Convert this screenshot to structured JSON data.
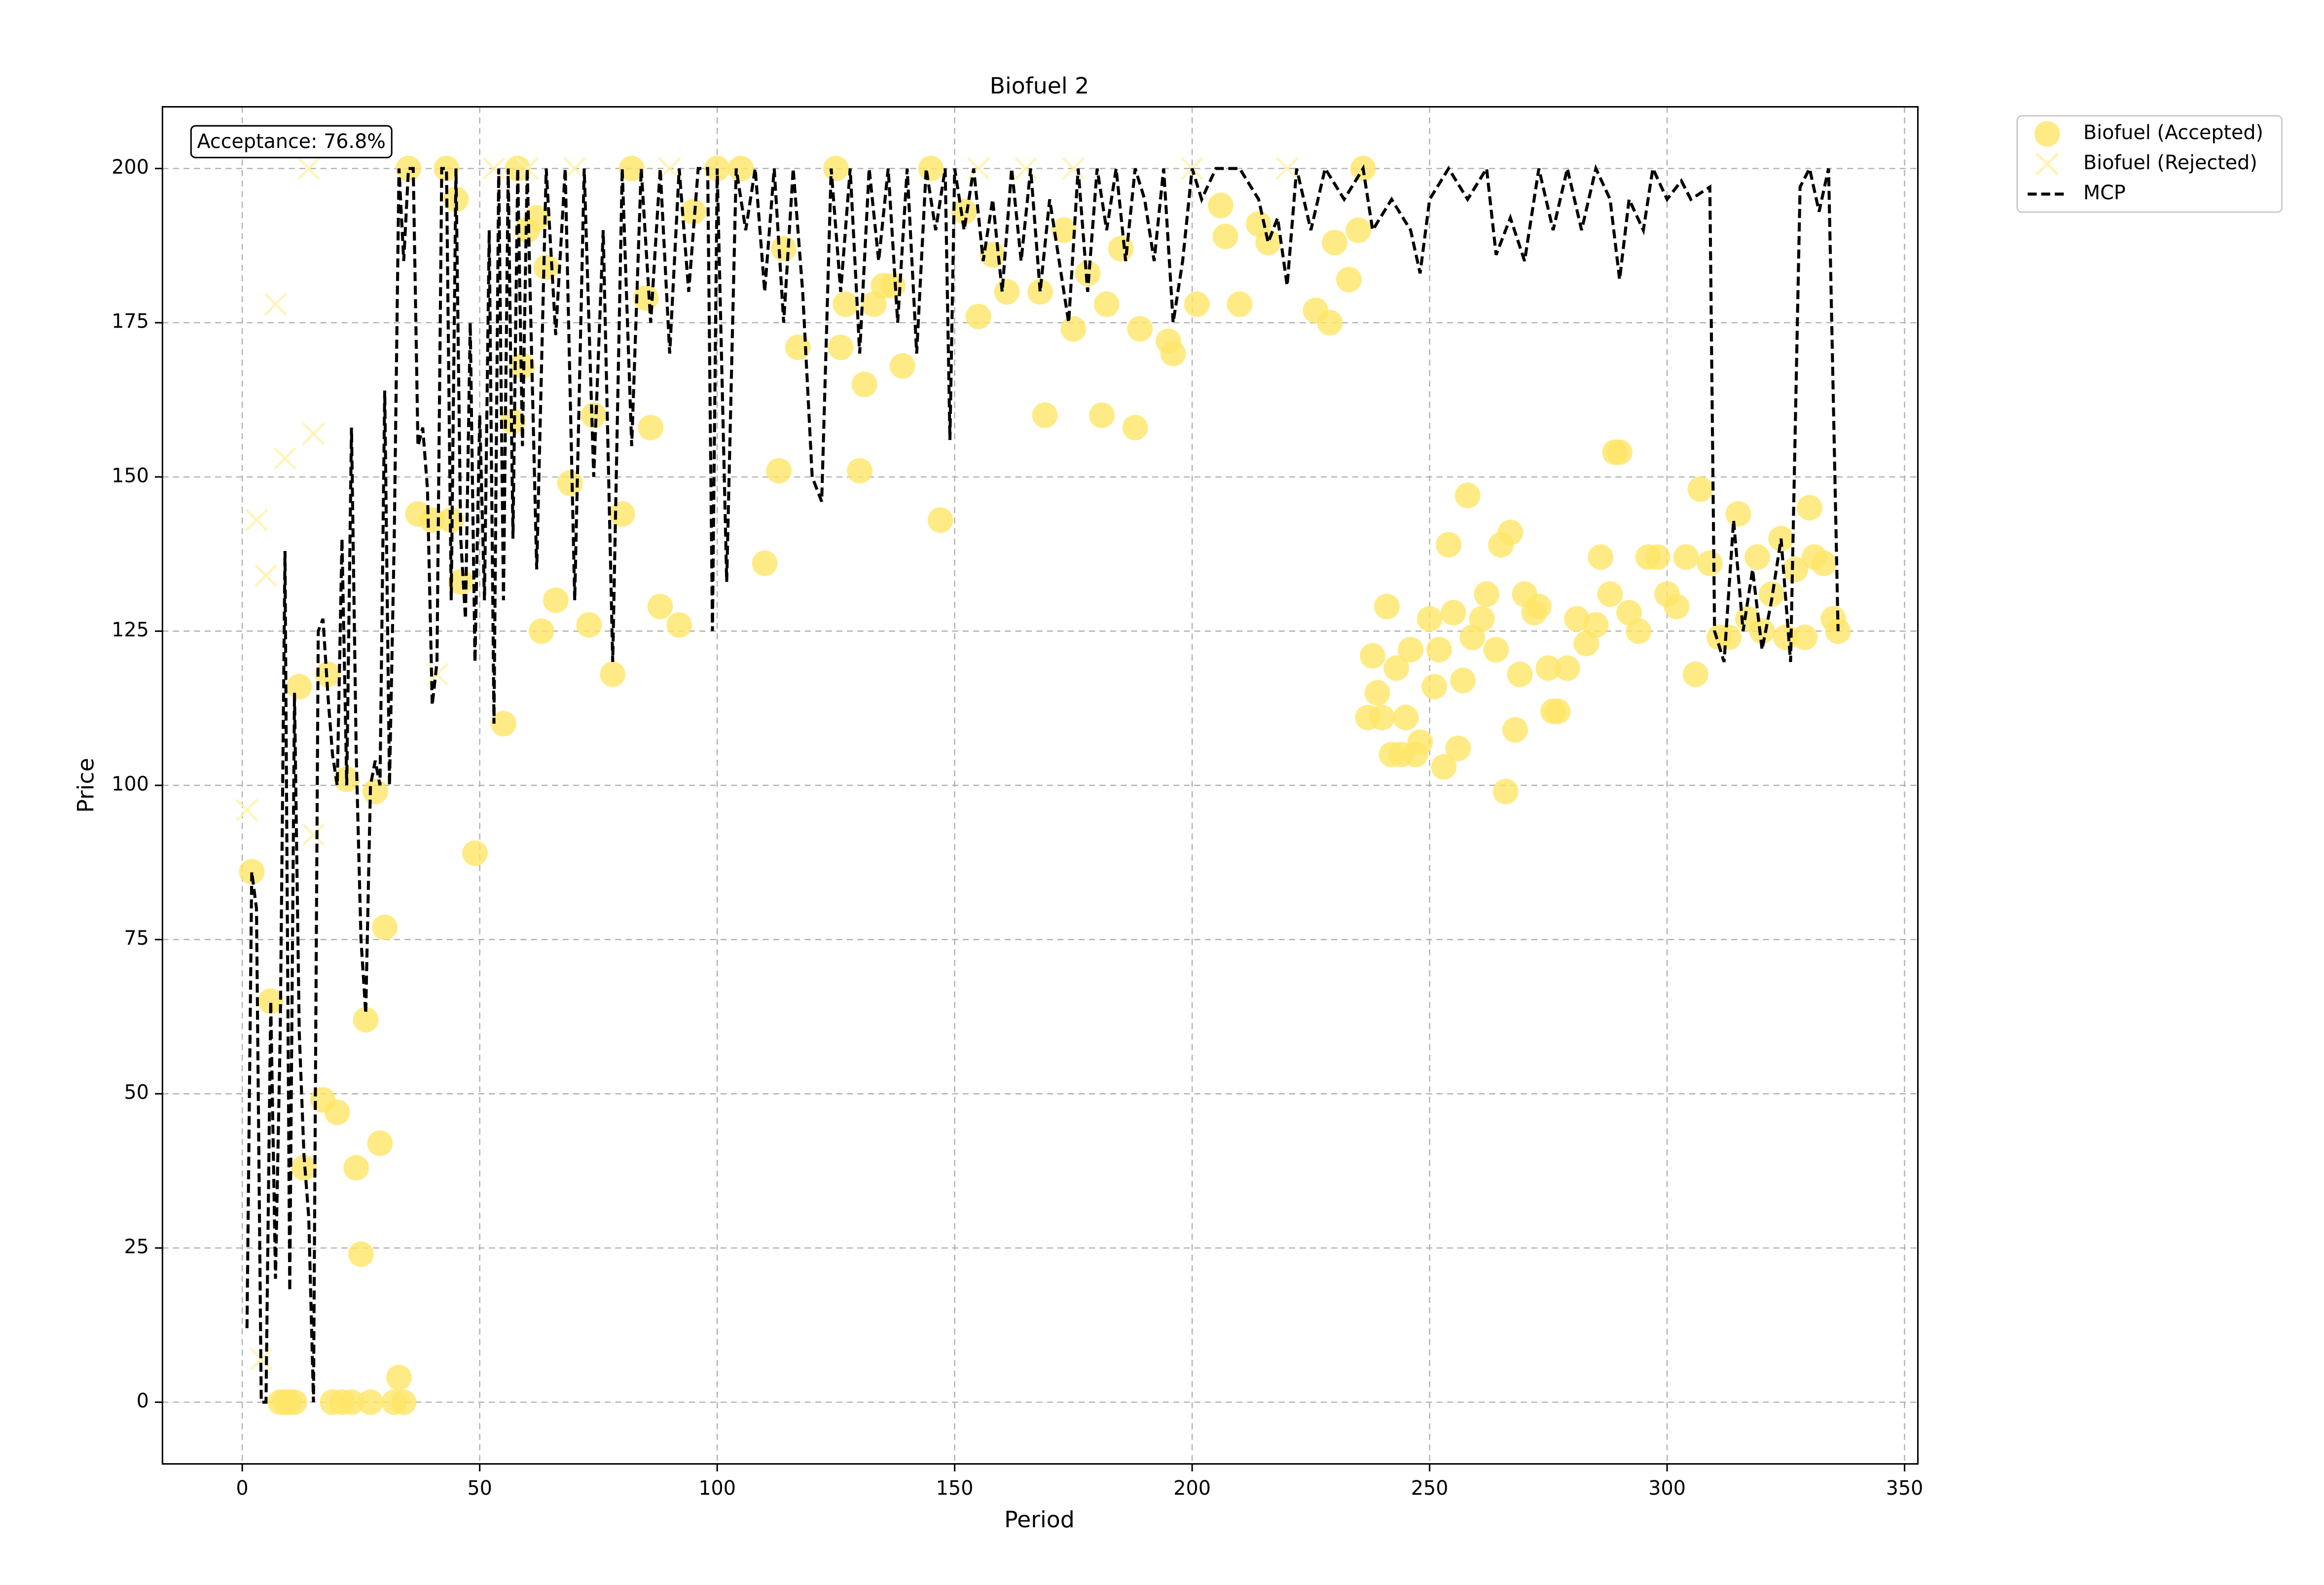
{
  "chart_data": {
    "type": "scatter",
    "title": "Biofuel 2",
    "x_label": "Period",
    "y_label": "Price",
    "annotation": "Acceptance: 76.8%",
    "xlim": [
      -16.8,
      352.8
    ],
    "ylim": [
      -10,
      210
    ],
    "xticks": [
      0,
      50,
      100,
      150,
      200,
      250,
      300,
      350
    ],
    "yticks": [
      0,
      25,
      50,
      75,
      100,
      125,
      150,
      175,
      200
    ],
    "grid": true,
    "legend": "outside upper right",
    "series": [
      {
        "name": "Biofuel (Accepted)",
        "type": "scatter",
        "marker": "circle",
        "color": "#ffe667",
        "x": [
          2,
          6,
          8,
          9,
          10,
          11,
          12,
          13,
          17,
          18,
          19,
          20,
          21,
          22,
          23,
          24,
          25,
          26,
          27,
          28,
          29,
          30,
          32,
          33,
          34,
          35,
          37,
          40,
          43,
          44,
          45,
          46,
          49,
          55,
          57,
          58,
          59,
          60,
          62,
          63,
          64,
          66,
          69,
          73,
          74,
          78,
          80,
          82,
          85,
          86,
          88,
          92,
          95,
          100,
          105,
          110,
          113,
          114,
          117,
          125,
          126,
          127,
          130,
          131,
          133,
          135,
          137,
          139,
          145,
          147,
          152,
          155,
          158,
          161,
          168,
          169,
          173,
          175,
          178,
          181,
          182,
          185,
          188,
          189,
          195,
          196,
          201,
          206,
          207,
          210,
          214,
          216,
          226,
          229,
          230,
          233,
          235,
          236,
          237,
          238,
          239,
          240,
          241,
          242,
          243,
          244,
          245,
          246,
          247,
          248,
          250,
          251,
          252,
          253,
          254,
          255,
          256,
          257,
          258,
          259,
          261,
          262,
          264,
          265,
          266,
          267,
          268,
          269,
          270,
          272,
          273,
          275,
          276,
          277,
          279,
          281,
          283,
          285,
          286,
          288,
          289,
          290,
          292,
          294,
          296,
          298,
          300,
          302,
          304,
          306,
          307,
          309,
          311,
          313,
          315,
          317,
          319,
          320,
          322,
          324,
          325,
          327,
          329,
          330,
          331,
          333,
          335,
          336
        ],
        "values": [
          86,
          65,
          0,
          0,
          0,
          0,
          116,
          38,
          49,
          118,
          0,
          47,
          0,
          101,
          0,
          38,
          24,
          62,
          0,
          99,
          42,
          77,
          0,
          4,
          0,
          200,
          144,
          143,
          200,
          143,
          195,
          133,
          89,
          110,
          159,
          200,
          168,
          190,
          192,
          125,
          184,
          130,
          149,
          126,
          160,
          118,
          144,
          200,
          179,
          158,
          129,
          126,
          193,
          200,
          200,
          136,
          151,
          187,
          171,
          200,
          171,
          178,
          151,
          165,
          178,
          181,
          181,
          168,
          200,
          143,
          193,
          176,
          186,
          180,
          180,
          160,
          190,
          174,
          183,
          160,
          178,
          187,
          158,
          174,
          172,
          170,
          178,
          194,
          189,
          178,
          191,
          188,
          177,
          175,
          188,
          182,
          190,
          200,
          111,
          121,
          115,
          111,
          129,
          105,
          119,
          105,
          111,
          122,
          105,
          107,
          127,
          116,
          122,
          103,
          139,
          128,
          106,
          117,
          147,
          124,
          127,
          131,
          122,
          139,
          99,
          141,
          109,
          118,
          131,
          128,
          129,
          119,
          112,
          112,
          119,
          127,
          123,
          126,
          137,
          131,
          154,
          154,
          128,
          125,
          137,
          137,
          131,
          129,
          137,
          118,
          148,
          136,
          124,
          124,
          144,
          127,
          137,
          125,
          131,
          140,
          124,
          135,
          124,
          145,
          137,
          136,
          127,
          125
        ]
      },
      {
        "name": "Biofuel (Rejected)",
        "type": "scatter",
        "marker": "x",
        "color": "#fff2ad",
        "x": [
          1,
          3,
          5,
          4,
          7,
          9,
          14,
          15,
          15,
          41,
          53,
          60,
          70,
          90,
          155,
          165,
          175,
          200,
          220
        ],
        "values": [
          96,
          143,
          134,
          7,
          178,
          153,
          200,
          157,
          92,
          118,
          200,
          200,
          200,
          200,
          200,
          200,
          200,
          200,
          200
        ]
      },
      {
        "name": "MCP",
        "type": "line",
        "color": "#000000",
        "x": [
          1,
          2,
          3,
          4,
          5,
          6,
          7,
          8,
          9,
          10,
          11,
          12,
          13,
          14,
          15,
          16,
          17,
          18,
          19,
          20,
          21,
          22,
          23,
          24,
          25,
          26,
          27,
          28,
          29,
          30,
          31,
          32,
          33,
          34,
          35,
          36,
          37,
          38,
          39,
          40,
          41,
          42,
          43,
          44,
          45,
          46,
          47,
          48,
          49,
          50,
          51,
          52,
          53,
          54,
          55,
          56,
          57,
          58,
          59,
          60,
          62,
          64,
          66,
          68,
          70,
          72,
          74,
          76,
          78,
          80,
          82,
          84,
          86,
          88,
          90,
          92,
          94,
          96,
          98,
          99,
          100,
          102,
          104,
          106,
          108,
          110,
          112,
          114,
          116,
          118,
          120,
          122,
          124,
          126,
          128,
          130,
          132,
          134,
          136,
          138,
          140,
          142,
          144,
          146,
          148,
          149,
          150,
          152,
          154,
          156,
          158,
          160,
          162,
          164,
          166,
          168,
          170,
          172,
          174,
          176,
          178,
          180,
          182,
          184,
          186,
          188,
          190,
          192,
          194,
          196,
          198,
          200,
          202,
          205,
          210,
          214,
          216,
          218,
          220,
          222,
          225,
          228,
          232,
          236,
          238,
          242,
          246,
          248,
          250,
          254,
          258,
          262,
          264,
          267,
          270,
          273,
          276,
          279,
          282,
          285,
          288,
          290,
          292,
          295,
          297,
          300,
          303,
          305,
          309,
          310,
          312,
          314,
          316,
          318,
          320,
          322,
          324,
          326,
          328,
          330,
          332,
          334,
          336
        ],
        "values": [
          12,
          86,
          80,
          0,
          0,
          65,
          20,
          60,
          138,
          18,
          115,
          60,
          40,
          30,
          0,
          125,
          127,
          115,
          105,
          100,
          140,
          100,
          158,
          105,
          75,
          63,
          100,
          104,
          100,
          164,
          100,
          140,
          200,
          185,
          200,
          200,
          155,
          158,
          148,
          113,
          120,
          200,
          200,
          130,
          200,
          140,
          127,
          175,
          120,
          160,
          130,
          190,
          110,
          200,
          130,
          200,
          140,
          200,
          155,
          200,
          135,
          200,
          173,
          200,
          130,
          200,
          150,
          190,
          120,
          200,
          155,
          200,
          175,
          200,
          170,
          200,
          180,
          200,
          200,
          125,
          200,
          133,
          200,
          190,
          200,
          180,
          200,
          175,
          200,
          180,
          150,
          146,
          200,
          180,
          200,
          170,
          200,
          185,
          200,
          175,
          200,
          170,
          200,
          190,
          200,
          156,
          200,
          190,
          200,
          185,
          195,
          180,
          200,
          185,
          200,
          180,
          195,
          185,
          175,
          200,
          180,
          200,
          190,
          200,
          185,
          200,
          195,
          185,
          200,
          175,
          185,
          200,
          195,
          200,
          200,
          195,
          188,
          192,
          181,
          200,
          190,
          200,
          195,
          200,
          190,
          195,
          190,
          183,
          195,
          200,
          195,
          200,
          186,
          192,
          185,
          200,
          190,
          200,
          190,
          200,
          195,
          182,
          195,
          190,
          200,
          195,
          198,
          195,
          197,
          125,
          120,
          143,
          125,
          135,
          122,
          130,
          140,
          120,
          197,
          200,
          193,
          200,
          125
        ]
      }
    ]
  }
}
